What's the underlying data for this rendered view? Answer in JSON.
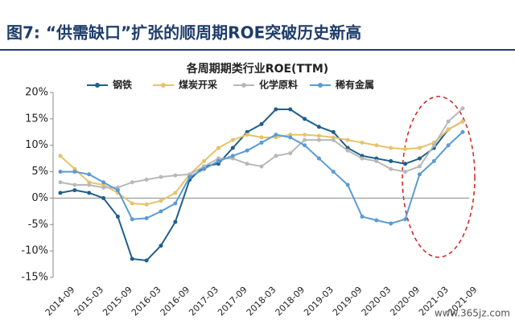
{
  "header": {
    "title": "图7: “供需缺口”扩张的顺周期ROE突破历史新高"
  },
  "watermark": "www.365jz.com",
  "chart_data": {
    "type": "line",
    "title": "各周期期类行业ROE(TTM)",
    "categories": [
      "2014-09",
      null,
      "2015-03",
      null,
      "2015-09",
      null,
      "2016-03",
      null,
      "2016-09",
      null,
      "2017-03",
      null,
      "2017-09",
      null,
      "2018-03",
      null,
      "2018-09",
      null,
      "2019-03",
      null,
      "2019-09",
      null,
      "2020-03",
      null,
      "2020-09",
      null,
      "2021-03",
      null,
      "2021-09"
    ],
    "series": [
      {
        "name": "钢铁",
        "color": "#1f5f8b",
        "values": [
          1,
          1.5,
          1,
          0,
          -3.5,
          -11.5,
          -11.8,
          -9,
          -4.5,
          3.5,
          6,
          6.5,
          9.5,
          12.5,
          14,
          16.8,
          16.8,
          15,
          13.5,
          12.5,
          9.5,
          8,
          7.5,
          7,
          6.5,
          7.5,
          9.5,
          13,
          14.5
        ]
      },
      {
        "name": "煤炭开采",
        "color": "#e6c36a",
        "values": [
          8,
          5.5,
          3,
          2.5,
          1,
          -1,
          -1.2,
          -0.5,
          1,
          4.5,
          7,
          9.5,
          11,
          12,
          11.5,
          11.5,
          12,
          12,
          11.8,
          11.5,
          11,
          10.5,
          10,
          9.5,
          9.3,
          9.5,
          10.5,
          13,
          14.5
        ]
      },
      {
        "name": "化学原料",
        "color": "#b8b8b8",
        "values": [
          3,
          2.5,
          2.5,
          2,
          2,
          3,
          3.5,
          4,
          4.3,
          4.5,
          6,
          7.5,
          7.5,
          6.5,
          6,
          8,
          8.5,
          11,
          11,
          11,
          9,
          7.5,
          7,
          5.5,
          5,
          6,
          10,
          14.5,
          17
        ]
      },
      {
        "name": "稀有金属",
        "color": "#5b9bd5",
        "values": [
          5,
          5,
          4.5,
          3,
          1.5,
          -4,
          -3.8,
          -2.5,
          -1,
          4,
          5.5,
          7,
          8,
          9,
          10.5,
          12,
          11.5,
          10,
          7.5,
          5,
          2.5,
          -3.5,
          -4.2,
          -4.8,
          -4,
          4.5,
          7,
          10,
          12.5
        ]
      }
    ],
    "ylim": [
      -15,
      20
    ],
    "yticks": [
      {
        "value": -15,
        "label": "-15%"
      },
      {
        "value": -10,
        "label": "-10%"
      },
      {
        "value": -5,
        "label": "-5%"
      },
      {
        "value": 0,
        "label": "0%"
      },
      {
        "value": 5,
        "label": "5%"
      },
      {
        "value": 10,
        "label": "10%"
      },
      {
        "value": 15,
        "label": "15%"
      },
      {
        "value": 20,
        "label": "20%"
      }
    ],
    "legend": "top"
  }
}
